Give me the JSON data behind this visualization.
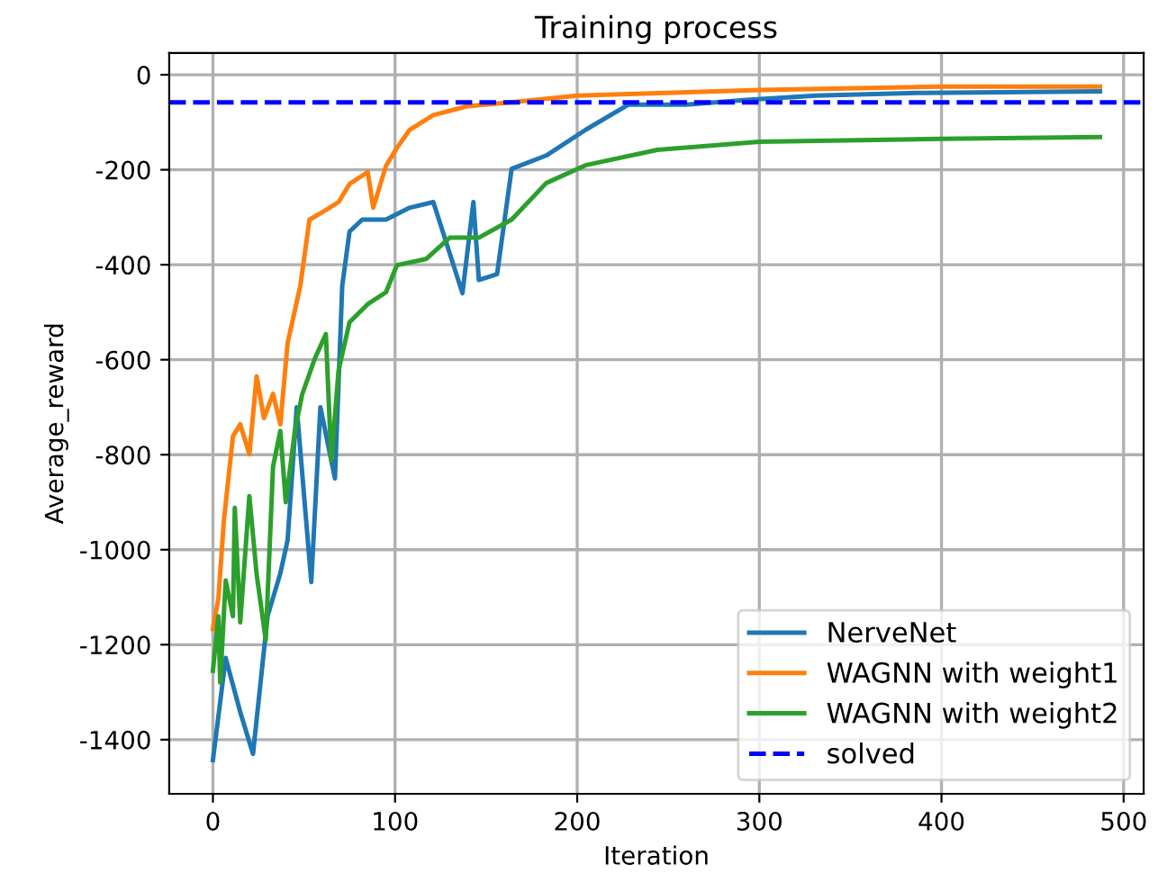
{
  "chart_data": {
    "type": "line",
    "title": "Training process",
    "xlabel": "Iteration",
    "ylabel": "Average_reward",
    "xlim": [
      -24,
      511
    ],
    "ylim": [
      -1514,
      46
    ],
    "xticks": [
      0,
      100,
      200,
      300,
      400,
      500
    ],
    "yticks": [
      -1400,
      -1200,
      -1000,
      -800,
      -600,
      -400,
      -200,
      0
    ],
    "grid": true,
    "legend": "bottom right",
    "line_style": "solid",
    "series": [
      {
        "name": "NerveNet",
        "color": "#1f77b4",
        "x": [
          0,
          7,
          15,
          22,
          30,
          37,
          41,
          46,
          54,
          59,
          67,
          71,
          75,
          82,
          95,
          108,
          121,
          137,
          143,
          146,
          156,
          164,
          183,
          205,
          228,
          260,
          293,
          331,
          390,
          487
        ],
        "values": [
          -1443,
          -1228,
          -1342,
          -1430,
          -1140,
          -1050,
          -980,
          -700,
          -1068,
          -700,
          -850,
          -444,
          -330,
          -305,
          -305,
          -280,
          -268,
          -460,
          -268,
          -432,
          -420,
          -198,
          -170,
          -115,
          -63,
          -63,
          -53,
          -44,
          -38,
          -35
        ]
      },
      {
        "name": "WAGNN with weight1",
        "color": "#ff7f0e",
        "x": [
          0,
          3,
          6,
          11,
          15,
          20,
          24,
          28,
          33,
          37,
          41,
          48,
          53,
          59,
          69,
          75,
          85,
          88,
          95,
          101,
          108,
          121,
          140,
          166,
          200,
          300,
          400,
          487
        ],
        "values": [
          -1167,
          -1103,
          -939,
          -761,
          -736,
          -799,
          -635,
          -723,
          -672,
          -736,
          -565,
          -444,
          -305,
          -292,
          -268,
          -230,
          -205,
          -280,
          -192,
          -154,
          -116,
          -85,
          -66,
          -57,
          -44,
          -32,
          -25,
          -25
        ]
      },
      {
        "name": "WAGNN with weight2",
        "color": "#2ca02c",
        "x": [
          0,
          3,
          4,
          7,
          11,
          12,
          15,
          20,
          24,
          29,
          33,
          37,
          40,
          45,
          49,
          56,
          62,
          65,
          69,
          75,
          85,
          95,
          101,
          117,
          130,
          146,
          164,
          183,
          205,
          244,
          300,
          400,
          487
        ],
        "values": [
          -1255,
          -1140,
          -1280,
          -1065,
          -1140,
          -912,
          -1153,
          -887,
          -1052,
          -1190,
          -825,
          -750,
          -900,
          -750,
          -673,
          -597,
          -546,
          -812,
          -622,
          -521,
          -483,
          -458,
          -401,
          -388,
          -343,
          -343,
          -305,
          -228,
          -190,
          -158,
          -141,
          -135,
          -131
        ]
      }
    ],
    "ref_lines": [
      {
        "axis": "y",
        "value": -58,
        "label": "solved",
        "color": "#0000ff",
        "line_style": "dashed"
      }
    ]
  }
}
